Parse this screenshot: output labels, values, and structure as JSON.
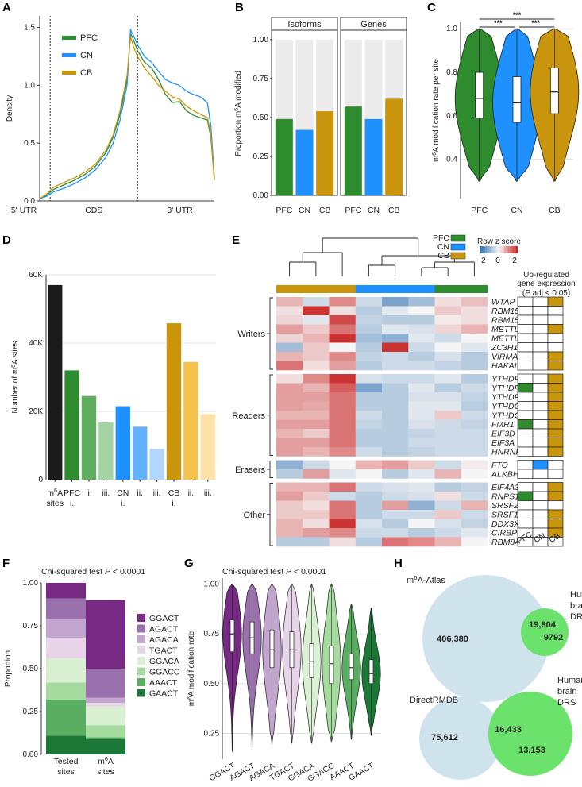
{
  "colors": {
    "PFC": "#2E8B2E",
    "CN": "#1E90FF",
    "CB": "#C8950C",
    "bg_panel": "#EBEBEB",
    "grid": "#DADADA",
    "heat_neg": "#2B6CB0",
    "heat_mid": "#F5F5F5",
    "heat_pos": "#C81D1D",
    "venn_big": "#CFE3EC",
    "venn_small": "#6BE26B"
  },
  "panel_labels": {
    "A": "A",
    "B": "B",
    "C": "C",
    "D": "D",
    "E": "E",
    "F": "F",
    "G": "G",
    "H": "H"
  },
  "chart_data": [
    {
      "id": "A",
      "type": "line",
      "title": "",
      "ylabel": "Density",
      "ylim": [
        0,
        1.6
      ],
      "yticks": [
        "0.0",
        "0.5",
        "1.0",
        "1.5"
      ],
      "regions": [
        "5' UTR",
        "CDS",
        "3' UTR"
      ],
      "legend": [
        "PFC",
        "CN",
        "CB"
      ],
      "series": [
        {
          "name": "PFC",
          "x": [
            0,
            0.04,
            0.08,
            0.14,
            0.2,
            0.26,
            0.32,
            0.38,
            0.42,
            0.46,
            0.5,
            0.52,
            0.54,
            0.56,
            0.6,
            0.64,
            0.68,
            0.72,
            0.76,
            0.8,
            0.84,
            0.88,
            0.92,
            0.96,
            0.98,
            1.0
          ],
          "y": [
            0.02,
            0.05,
            0.1,
            0.14,
            0.18,
            0.23,
            0.3,
            0.42,
            0.55,
            0.75,
            1.05,
            1.45,
            1.38,
            1.3,
            1.2,
            1.15,
            1.05,
            0.92,
            0.85,
            0.86,
            0.78,
            0.74,
            0.72,
            0.7,
            0.55,
            0.18
          ]
        },
        {
          "name": "CN",
          "x": [
            0,
            0.04,
            0.08,
            0.14,
            0.2,
            0.26,
            0.32,
            0.38,
            0.42,
            0.46,
            0.5,
            0.52,
            0.54,
            0.56,
            0.6,
            0.64,
            0.68,
            0.72,
            0.76,
            0.8,
            0.84,
            0.88,
            0.92,
            0.96,
            0.98,
            1.0
          ],
          "y": [
            0.02,
            0.04,
            0.08,
            0.11,
            0.15,
            0.2,
            0.27,
            0.38,
            0.5,
            0.7,
            1.0,
            1.48,
            1.42,
            1.35,
            1.25,
            1.2,
            1.12,
            1.05,
            1.02,
            1.0,
            0.95,
            0.92,
            0.9,
            0.85,
            0.65,
            0.2
          ]
        },
        {
          "name": "CB",
          "x": [
            0,
            0.04,
            0.08,
            0.14,
            0.2,
            0.26,
            0.32,
            0.38,
            0.42,
            0.46,
            0.5,
            0.52,
            0.54,
            0.56,
            0.6,
            0.64,
            0.68,
            0.72,
            0.76,
            0.8,
            0.84,
            0.88,
            0.92,
            0.96,
            0.98,
            1.0
          ],
          "y": [
            0.02,
            0.06,
            0.12,
            0.16,
            0.2,
            0.25,
            0.32,
            0.44,
            0.57,
            0.78,
            1.08,
            1.42,
            1.32,
            1.25,
            1.15,
            1.08,
            1.0,
            0.95,
            0.9,
            0.88,
            0.82,
            0.78,
            0.75,
            0.72,
            0.58,
            0.18
          ]
        }
      ]
    },
    {
      "id": "B",
      "type": "bar",
      "ylabel": "Proportion m6A modified",
      "ylim": [
        0,
        1.05
      ],
      "yticks": [
        "0.00",
        "0.25",
        "0.50",
        "0.75",
        "1.00"
      ],
      "facets": [
        {
          "label": "Isoforms",
          "categories": [
            "PFC",
            "CN",
            "CB"
          ],
          "values": [
            0.49,
            0.42,
            0.54
          ]
        },
        {
          "label": "Genes",
          "categories": [
            "PFC",
            "CN",
            "CB"
          ],
          "values": [
            0.57,
            0.49,
            0.62
          ]
        }
      ]
    },
    {
      "id": "C",
      "type": "violin",
      "ylabel": "m6A modification rate per site",
      "ylim": [
        0.22,
        1.03
      ],
      "yticks": [
        "0.4",
        "0.6",
        "0.8",
        "1.0"
      ],
      "categories": [
        "PFC",
        "CN",
        "CB"
      ],
      "boxes": [
        {
          "q1": 0.59,
          "median": 0.68,
          "q3": 0.8,
          "low": 0.3,
          "high": 1.0
        },
        {
          "q1": 0.57,
          "median": 0.66,
          "q3": 0.78,
          "low": 0.3,
          "high": 1.0
        },
        {
          "q1": 0.61,
          "median": 0.71,
          "q3": 0.82,
          "low": 0.3,
          "high": 1.0
        }
      ],
      "significance": [
        "***",
        "***",
        "***"
      ]
    },
    {
      "id": "D",
      "type": "bar",
      "ylabel": "Number of m6A sites",
      "ylim": [
        0,
        60000
      ],
      "yticks": [
        "0",
        "20K",
        "40K",
        "60K"
      ],
      "categories": [
        "m6A sites",
        "PFC i.",
        "ii.",
        "iii.",
        "CN i.",
        "ii.",
        "iii.",
        "CB i.",
        "ii.",
        "iii."
      ],
      "values": [
        57000,
        32000,
        24500,
        16800,
        21500,
        15500,
        9000,
        45800,
        34500,
        19200
      ]
    },
    {
      "id": "E",
      "type": "heatmap",
      "legend_title": "Row z score",
      "scale_ticks": [
        "−2",
        "0",
        "2"
      ],
      "side_title": "Up-regulated gene expression (P adj < 0.05)",
      "groups": [
        "PFC",
        "CN",
        "CB"
      ],
      "section_labels": [
        "Writers",
        "Readers",
        "Erasers",
        "Other"
      ],
      "sections": [
        {
          "label": "Writers",
          "genes": [
            "WTAP",
            "RBM15B",
            "RBM15",
            "METTL3",
            "METTL14",
            "ZC3H13",
            "VIRMA",
            "HAKAI"
          ],
          "z": [
            [
              0.6,
              -0.4,
              1.0,
              -0.4,
              -1.2,
              -0.8,
              0.2,
              0.5
            ],
            [
              0.2,
              1.8,
              0.2,
              -0.6,
              -0.2,
              0.0,
              0.4,
              0.2
            ],
            [
              0.3,
              -0.2,
              1.6,
              -0.5,
              -0.6,
              -0.6,
              0.1,
              0.2
            ],
            [
              0.8,
              0.4,
              1.2,
              -0.6,
              -0.2,
              -0.3,
              0.3,
              0.6
            ],
            [
              0.3,
              0.6,
              1.8,
              -0.8,
              -1.0,
              -0.2,
              -0.4,
              0.0
            ],
            [
              -0.8,
              0.4,
              0.0,
              -0.6,
              1.8,
              -0.4,
              0.0,
              -0.2
            ],
            [
              0.6,
              0.4,
              1.0,
              -0.5,
              -0.4,
              -0.6,
              -0.3,
              -0.6
            ],
            [
              1.2,
              0.2,
              0.8,
              -0.6,
              -0.4,
              -0.4,
              -0.5,
              -0.6
            ]
          ],
          "up": [
            [
              0,
              0,
              1
            ],
            [
              0,
              0,
              0
            ],
            [
              0,
              0,
              0
            ],
            [
              0,
              0,
              1
            ],
            [
              0,
              0,
              0
            ],
            [
              0,
              0,
              0
            ],
            [
              0,
              0,
              1
            ],
            [
              0,
              0,
              1
            ]
          ]
        },
        {
          "label": "Readers",
          "genes": [
            "YTHDF3",
            "YTHDF2",
            "YTHDF1",
            "YTHDC2",
            "YTHDC1",
            "FMR1",
            "EIF3D",
            "EIF3A",
            "HNRNPH1"
          ],
          "z": [
            [
              0.2,
              1.0,
              1.8,
              -0.3,
              -0.4,
              -0.4,
              -0.2,
              -0.6
            ],
            [
              0.8,
              0.6,
              1.4,
              -1.2,
              -0.6,
              -0.2,
              -0.6,
              -0.4
            ],
            [
              0.8,
              0.8,
              1.2,
              -0.6,
              -0.6,
              -0.3,
              -0.3,
              -0.5
            ],
            [
              0.8,
              0.7,
              1.2,
              -0.6,
              -0.6,
              -0.2,
              -0.2,
              -0.6
            ],
            [
              0.6,
              0.6,
              1.2,
              -0.4,
              -0.6,
              -0.2,
              0.4,
              -0.4
            ],
            [
              0.8,
              0.8,
              1.2,
              -0.5,
              -0.6,
              -0.3,
              -0.4,
              -0.5
            ],
            [
              0.6,
              0.4,
              1.2,
              -0.6,
              -0.6,
              -0.5,
              -0.4,
              -0.4
            ],
            [
              0.8,
              0.8,
              1.2,
              -0.6,
              -0.6,
              -0.4,
              -0.4,
              -0.4
            ],
            [
              0.8,
              0.6,
              1.0,
              -0.4,
              -0.6,
              -0.5,
              -0.4,
              -0.4
            ]
          ],
          "up": [
            [
              0,
              0,
              1
            ],
            [
              1,
              0,
              1
            ],
            [
              0,
              0,
              1
            ],
            [
              0,
              0,
              1
            ],
            [
              0,
              0,
              1
            ],
            [
              1,
              0,
              1
            ],
            [
              0,
              0,
              1
            ],
            [
              0,
              0,
              1
            ],
            [
              0,
              0,
              1
            ]
          ]
        },
        {
          "label": "Erasers",
          "genes": [
            "FTO",
            "ALKBH5"
          ],
          "z": [
            [
              -1.0,
              -0.4,
              0.0,
              0.6,
              0.8,
              0.4,
              -0.4,
              0.1
            ],
            [
              -0.6,
              0.8,
              -0.2,
              0.0,
              -0.6,
              -0.2,
              0.6,
              0.0
            ]
          ],
          "up": [
            [
              0,
              1,
              0
            ],
            [
              0,
              0,
              0
            ]
          ]
        },
        {
          "label": "Other",
          "genes": [
            "EIF4A3",
            "RNPS1",
            "SRSF2",
            "SRSF1",
            "DDX3X",
            "CIRBP",
            "RBM8A"
          ],
          "z": [
            [
              0.6,
              0.6,
              1.2,
              -0.4,
              -0.3,
              -0.2,
              -0.6,
              -0.5
            ],
            [
              0.8,
              0.4,
              -0.4,
              -0.6,
              -0.4,
              -0.3,
              0.2,
              -0.4
            ],
            [
              0.4,
              0.2,
              1.2,
              -0.6,
              0.8,
              -1.0,
              -0.4,
              0.6
            ],
            [
              0.4,
              0.4,
              1.2,
              -0.6,
              -0.4,
              -0.4,
              0.4,
              -0.4
            ],
            [
              0.6,
              0.2,
              1.8,
              -0.3,
              -0.6,
              0.0,
              -0.3,
              -0.5
            ],
            [
              0.6,
              0.8,
              1.0,
              -0.4,
              -0.4,
              -0.6,
              -0.4,
              -0.2
            ],
            [
              -0.6,
              -0.6,
              0.2,
              -0.6,
              1.2,
              1.0,
              0.6,
              0.0
            ]
          ],
          "up": [
            [
              0,
              0,
              1
            ],
            [
              1,
              0,
              1
            ],
            [
              0,
              0,
              0
            ],
            [
              0,
              0,
              1
            ],
            [
              0,
              0,
              1
            ],
            [
              0,
              0,
              1
            ],
            [
              0,
              0,
              0
            ]
          ]
        }
      ]
    },
    {
      "id": "F",
      "type": "stacked-bar",
      "title": "Chi-squared test P < 0.0001",
      "ylabel": "Proportion",
      "ylim": [
        0,
        1
      ],
      "yticks": [
        "0.00",
        "0.25",
        "0.50",
        "0.75",
        "1.00"
      ],
      "categories": [
        "Tested sites",
        "m6A sites"
      ],
      "legend": [
        "GGACT",
        "AGACT",
        "AGACA",
        "TGACT",
        "GGACA",
        "GGACC",
        "AAACT",
        "GAACT"
      ],
      "series_colors": [
        "#762A83",
        "#9970AB",
        "#C2A5CF",
        "#E7D4E8",
        "#D9F0D3",
        "#A6DBA0",
        "#5AAE61",
        "#1B7837"
      ],
      "stacks": [
        [
          0.09,
          0.12,
          0.11,
          0.12,
          0.14,
          0.1,
          0.21,
          0.11
        ],
        [
          0.4,
          0.17,
          0.03,
          0.02,
          0.11,
          0.07,
          0.01,
          0.09
        ]
      ]
    },
    {
      "id": "G",
      "type": "violin",
      "title": "Chi-squared test P < 0.0001",
      "ylabel": "m6A modification rate",
      "ylim": [
        0.12,
        1.03
      ],
      "yticks": [
        "0.25",
        "0.50",
        "0.75",
        "1.00"
      ],
      "categories": [
        "GGACT",
        "AGACT",
        "AGACA",
        "TGACT",
        "GGACA",
        "GGACC",
        "AAACT",
        "GAACT"
      ],
      "fill_colors": [
        "#762A83",
        "#9970AB",
        "#C2A5CF",
        "#E7D4E8",
        "#D9F0D3",
        "#A6DBA0",
        "#5AAE61",
        "#1B7837"
      ],
      "boxes": [
        {
          "q1": 0.66,
          "median": 0.75,
          "q3": 0.82,
          "low": 0.16,
          "high": 1.0
        },
        {
          "q1": 0.65,
          "median": 0.73,
          "q3": 0.81,
          "low": 0.18,
          "high": 1.0
        },
        {
          "q1": 0.58,
          "median": 0.67,
          "q3": 0.77,
          "low": 0.2,
          "high": 1.0
        },
        {
          "q1": 0.58,
          "median": 0.67,
          "q3": 0.76,
          "low": 0.2,
          "high": 1.0
        },
        {
          "q1": 0.53,
          "median": 0.61,
          "q3": 0.7,
          "low": 0.2,
          "high": 1.0
        },
        {
          "q1": 0.5,
          "median": 0.6,
          "q3": 0.69,
          "low": 0.21,
          "high": 1.0
        },
        {
          "q1": 0.52,
          "median": 0.58,
          "q3": 0.65,
          "low": 0.22,
          "high": 0.9
        },
        {
          "q1": 0.5,
          "median": 0.55,
          "q3": 0.62,
          "low": 0.24,
          "high": 0.88
        }
      ]
    },
    {
      "id": "H",
      "type": "venn",
      "diagrams": [
        {
          "big_label": "m6A-Atlas",
          "small_label": "Human brain DRS",
          "only_big": "406,380",
          "overlap": "19,804",
          "only_small": "9792"
        },
        {
          "big_label": "DirectRMDB",
          "small_label": "Human brain DRS",
          "only_big": "75,612",
          "overlap": "16,433",
          "only_small": "13,153"
        }
      ]
    }
  ]
}
